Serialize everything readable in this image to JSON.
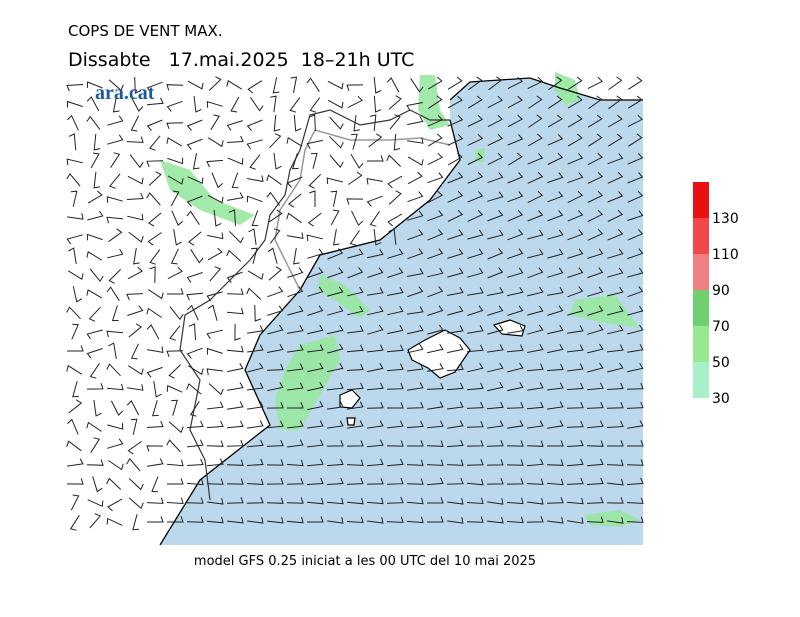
{
  "header": {
    "title": "COPS DE VENT MAX.",
    "subtitle": "Dissabte   17.mai.2025  18–21h UTC",
    "logo": "ara.cat"
  },
  "footer": "model GFS 0.25 iniciat a les 00 UTC del 10 mai 2025",
  "legend": {
    "ticks": [
      30,
      50,
      70,
      90,
      110,
      130
    ],
    "colors": [
      "#a8f0c8",
      "#98e890",
      "#70d070",
      "#f08080",
      "#f04848",
      "#e81010"
    ]
  }
}
